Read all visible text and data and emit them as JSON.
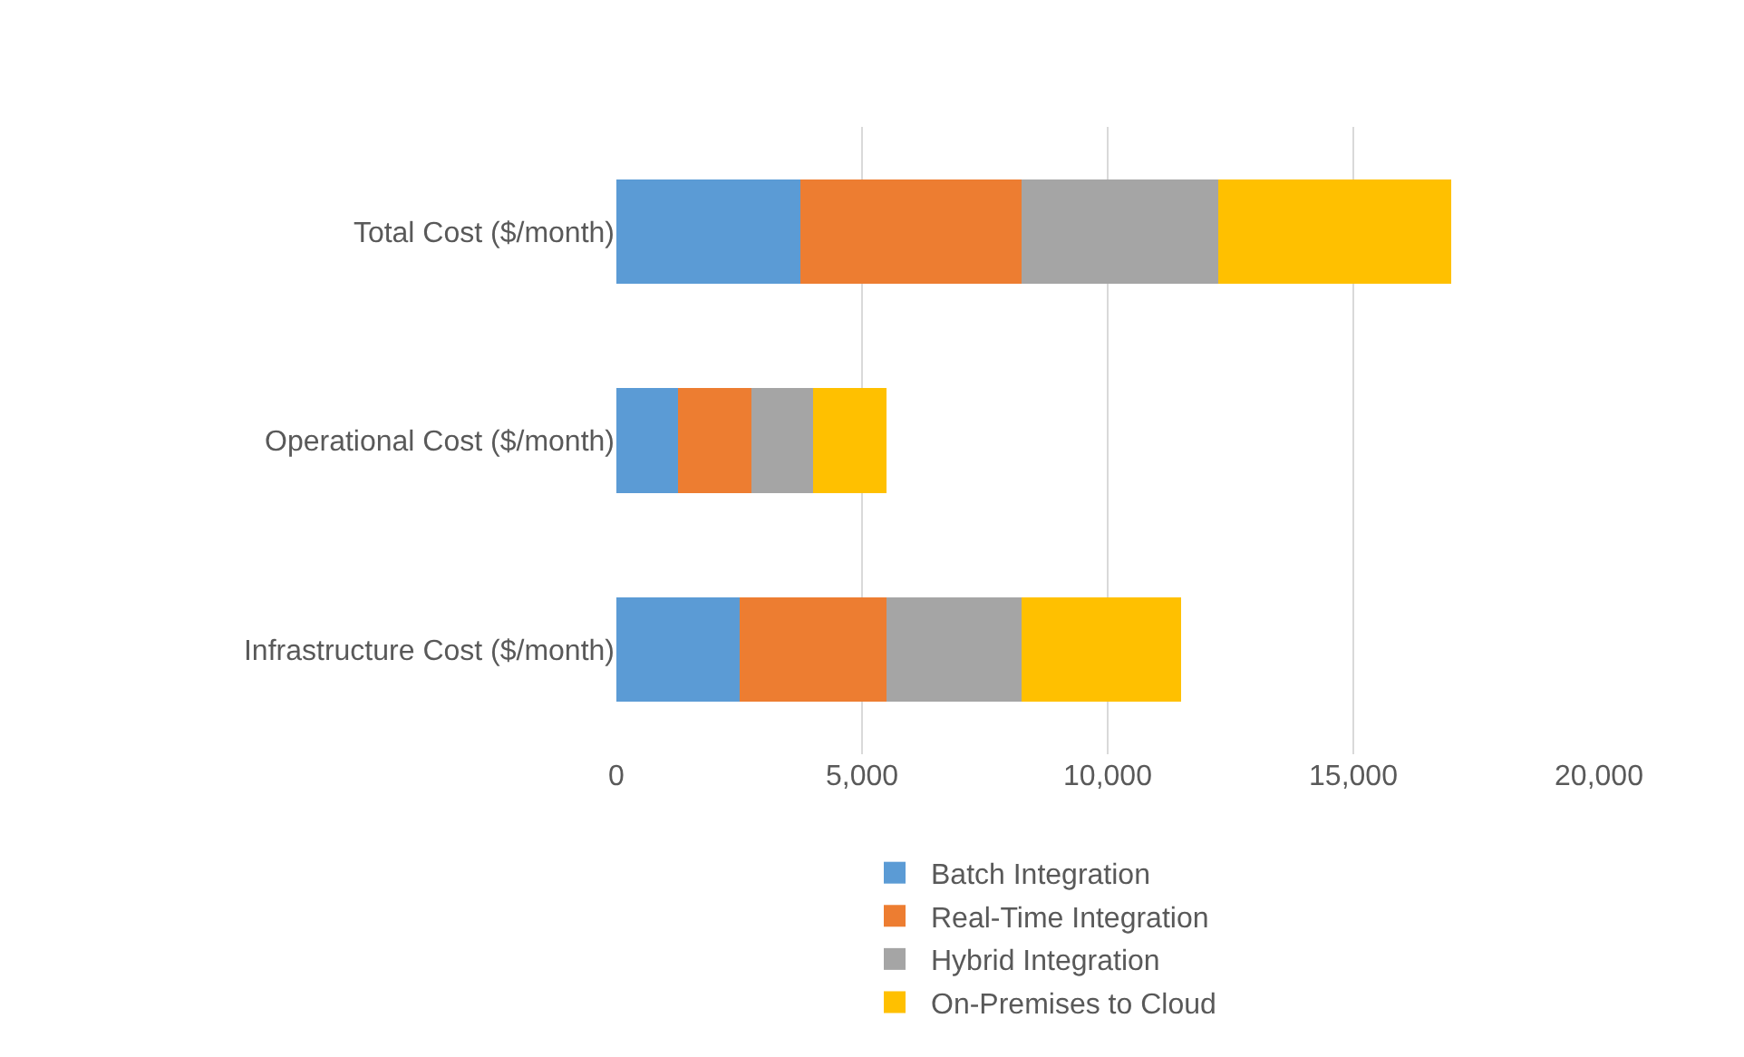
{
  "chart_data": {
    "type": "bar",
    "orientation": "horizontal",
    "stacked": true,
    "categories": [
      "Total Cost ($/month)",
      "Operational Cost ($/month)",
      "Infrastructure Cost ($/month)"
    ],
    "series": [
      {
        "name": "Batch Integration",
        "color": "#5b9bd5",
        "values": [
          3750,
          1250,
          2500
        ]
      },
      {
        "name": "Real-Time Integration",
        "color": "#ed7d31",
        "values": [
          4500,
          1500,
          3000
        ]
      },
      {
        "name": "Hybrid Integration",
        "color": "#a5a5a5",
        "values": [
          4000,
          1250,
          2750
        ]
      },
      {
        "name": "On-Premises to Cloud",
        "color": "#ffc000",
        "values": [
          4750,
          1500,
          3250
        ]
      }
    ],
    "xlim": [
      0,
      20000
    ],
    "xticks": [
      0,
      {
        "value": 5000,
        "label": "5,000"
      },
      {
        "value": 10000,
        "label": "10,000"
      },
      {
        "value": 15000,
        "label": "15,000"
      },
      {
        "value": 20000,
        "label": "20,000"
      }
    ],
    "grid": "x",
    "legend": "bottom"
  }
}
